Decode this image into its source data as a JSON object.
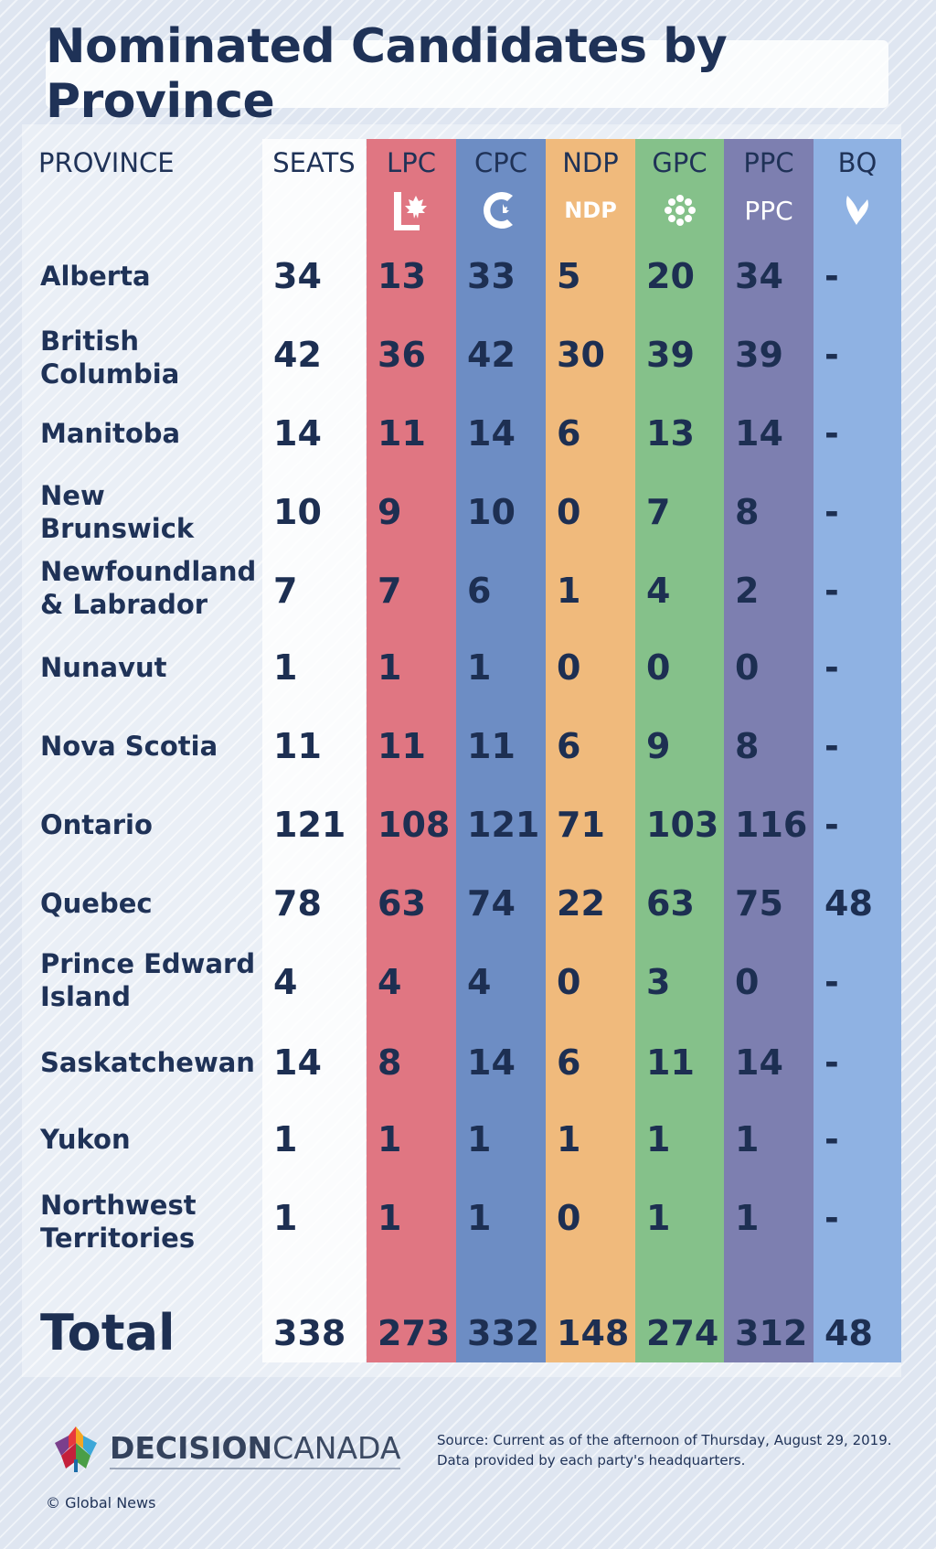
{
  "chart_data": {
    "type": "table",
    "title": "Nominated Candidates by Province",
    "columns": [
      "PROVINCE",
      "SEATS",
      "LPC",
      "CPC",
      "NDP",
      "GPC",
      "PPC",
      "BQ"
    ],
    "party_colors": {
      "LPC": "#e07682",
      "CPC": "#6d8dc4",
      "NDP": "#f0ba7c",
      "GPC": "#85c18a",
      "PPC": "#7d7fb0",
      "BQ": "#8fb2e3"
    },
    "rows": [
      {
        "province": "Alberta",
        "values": [
          "34",
          "13",
          "33",
          "5",
          "20",
          "34",
          "-"
        ]
      },
      {
        "province": "British Columbia",
        "values": [
          "42",
          "36",
          "42",
          "30",
          "39",
          "39",
          "-"
        ]
      },
      {
        "province": "Manitoba",
        "values": [
          "14",
          "11",
          "14",
          "6",
          "13",
          "14",
          "-"
        ]
      },
      {
        "province": "New Brunswick",
        "values": [
          "10",
          "9",
          "10",
          "0",
          "7",
          "8",
          "-"
        ]
      },
      {
        "province": "Newfoundland & Labrador",
        "values": [
          "7",
          "7",
          "6",
          "1",
          "4",
          "2",
          "-"
        ]
      },
      {
        "province": "Nunavut",
        "values": [
          "1",
          "1",
          "1",
          "0",
          "0",
          "0",
          "-"
        ]
      },
      {
        "province": "Nova Scotia",
        "values": [
          "11",
          "11",
          "11",
          "6",
          "9",
          "8",
          "-"
        ]
      },
      {
        "province": "Ontario",
        "values": [
          "121",
          "108",
          "121",
          "71",
          "103",
          "116",
          "-"
        ]
      },
      {
        "province": "Quebec",
        "values": [
          "78",
          "63",
          "74",
          "22",
          "63",
          "75",
          "48"
        ]
      },
      {
        "province": "Prince Edward Island",
        "values": [
          "4",
          "4",
          "4",
          "0",
          "3",
          "0",
          "-"
        ]
      },
      {
        "province": "Saskatchewan",
        "values": [
          "14",
          "8",
          "14",
          "6",
          "11",
          "14",
          "-"
        ]
      },
      {
        "province": "Yukon",
        "values": [
          "1",
          "1",
          "1",
          "1",
          "1",
          "1",
          "-"
        ]
      },
      {
        "province": "Northwest Territories",
        "values": [
          "1",
          "1",
          "1",
          "0",
          "1",
          "1",
          "-"
        ]
      }
    ],
    "total": {
      "label": "Total",
      "values": [
        "338",
        "273",
        "332",
        "148",
        "274",
        "312",
        "48"
      ]
    }
  },
  "footer": {
    "brand_bold": "DECISION",
    "brand_light": "CANADA",
    "source_line1": "Source: Current as of the afternoon of Thursday, August 29, 2019.",
    "source_line2": "Data provided by each party's headquarters.",
    "credit": "© Global News"
  },
  "logos": {
    "LPC": "liberal-l-maple-logo",
    "CPC": "conservative-c-logo",
    "NDP": "ndp-maple-logo",
    "GPC": "green-flower-logo",
    "PPC": "ppc-logo",
    "BQ": "bloc-fleur-de-lis-logo"
  },
  "logo_text": {
    "NDP": "NDP",
    "PPC": "PPC"
  }
}
